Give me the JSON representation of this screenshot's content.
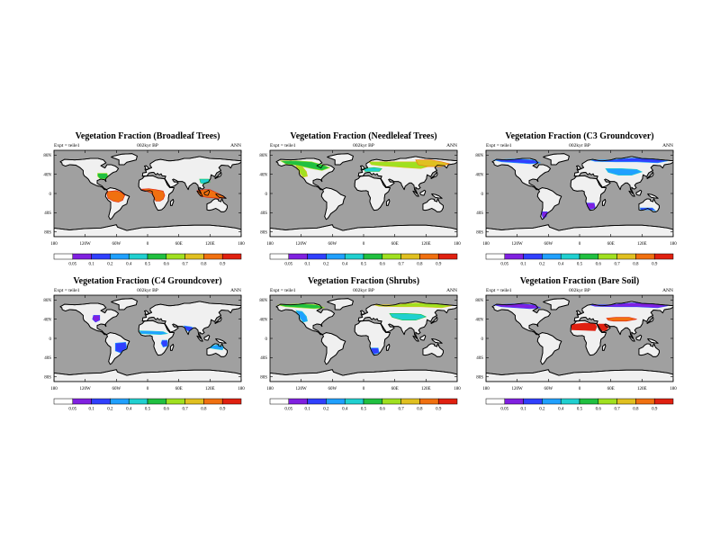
{
  "colors": {
    "ocean": "#a0a0a0",
    "land": "#f0f0f0",
    "coast": "#000000",
    "scale": [
      "#ffffff",
      "#8020e0",
      "#3040ff",
      "#20a0ff",
      "#20d0d0",
      "#20c040",
      "#a0e020",
      "#e0c020",
      "#f07010",
      "#e02010"
    ]
  },
  "colorbar_labels": [
    "0.05",
    "0.1",
    "0.2",
    "0.4",
    "0.5",
    "0.6",
    "0.7",
    "0.8",
    "0.9"
  ],
  "lon_labels": [
    "180",
    "120W",
    "60W",
    "0",
    "60E",
    "120E",
    "180"
  ],
  "lat_labels": [
    "80N",
    "40N",
    "0",
    "40S",
    "80S"
  ],
  "panels": [
    {
      "title": "Vegetation Fraction (Broadleaf Trees)",
      "expt": "Expt = teile1",
      "period": "002kyr BP",
      "season": "ANN",
      "overlays": [
        {
          "region": "amazon",
          "level": 8
        },
        {
          "region": "central-africa",
          "level": 8
        },
        {
          "region": "maritime-se-asia",
          "level": 8
        },
        {
          "region": "se-north-america",
          "level": 5
        },
        {
          "region": "se-china",
          "level": 4
        }
      ]
    },
    {
      "title": "Vegetation Fraction (Needleleaf Trees)",
      "expt": "Expt = teile1",
      "period": "002kyr BP",
      "season": "ANN",
      "overlays": [
        {
          "region": "boreal-north-america",
          "level": 5
        },
        {
          "region": "western-north-america",
          "level": 6
        },
        {
          "region": "boreal-eurasia",
          "level": 6
        },
        {
          "region": "siberia-east",
          "level": 7
        },
        {
          "region": "europe",
          "level": 4
        }
      ]
    },
    {
      "title": "Vegetation Fraction (C3 Groundcover)",
      "expt": "Expt = teile1",
      "period": "002kyr BP",
      "season": "ANN",
      "overlays": [
        {
          "region": "arctic-north-america",
          "level": 2
        },
        {
          "region": "northern-eurasia",
          "level": 2
        },
        {
          "region": "central-asia",
          "level": 3
        },
        {
          "region": "patagonia",
          "level": 1
        },
        {
          "region": "southern-africa",
          "level": 1
        },
        {
          "region": "southern-australia",
          "level": 2
        }
      ]
    },
    {
      "title": "Vegetation Fraction (C4 Groundcover)",
      "expt": "Expt = teile1",
      "period": "002kyr BP",
      "season": "ANN",
      "overlays": [
        {
          "region": "south-america-east",
          "level": 2
        },
        {
          "region": "sahel",
          "level": 3
        },
        {
          "region": "east-africa",
          "level": 2
        },
        {
          "region": "northern-australia",
          "level": 3
        },
        {
          "region": "india",
          "level": 2
        },
        {
          "region": "central-north-america",
          "level": 1
        }
      ]
    },
    {
      "title": "Vegetation Fraction (Shrubs)",
      "expt": "Expt = teile1",
      "period": "002kyr BP",
      "season": "ANN",
      "overlays": [
        {
          "region": "arctic-north-america",
          "level": 5
        },
        {
          "region": "northern-eurasia",
          "level": 6
        },
        {
          "region": "central-asia",
          "level": 4
        },
        {
          "region": "western-north-america",
          "level": 3
        },
        {
          "region": "southern-africa",
          "level": 2
        }
      ]
    },
    {
      "title": "Vegetation Fraction (Bare Soil)",
      "expt": "Expt = teile1",
      "period": "002kyr BP",
      "season": "ANN",
      "overlays": [
        {
          "region": "sahara",
          "level": 9
        },
        {
          "region": "arabia",
          "level": 9
        },
        {
          "region": "central-asia-desert",
          "level": 8
        },
        {
          "region": "arctic-north-america",
          "level": 1
        },
        {
          "region": "northern-eurasia",
          "level": 1
        }
      ]
    }
  ]
}
